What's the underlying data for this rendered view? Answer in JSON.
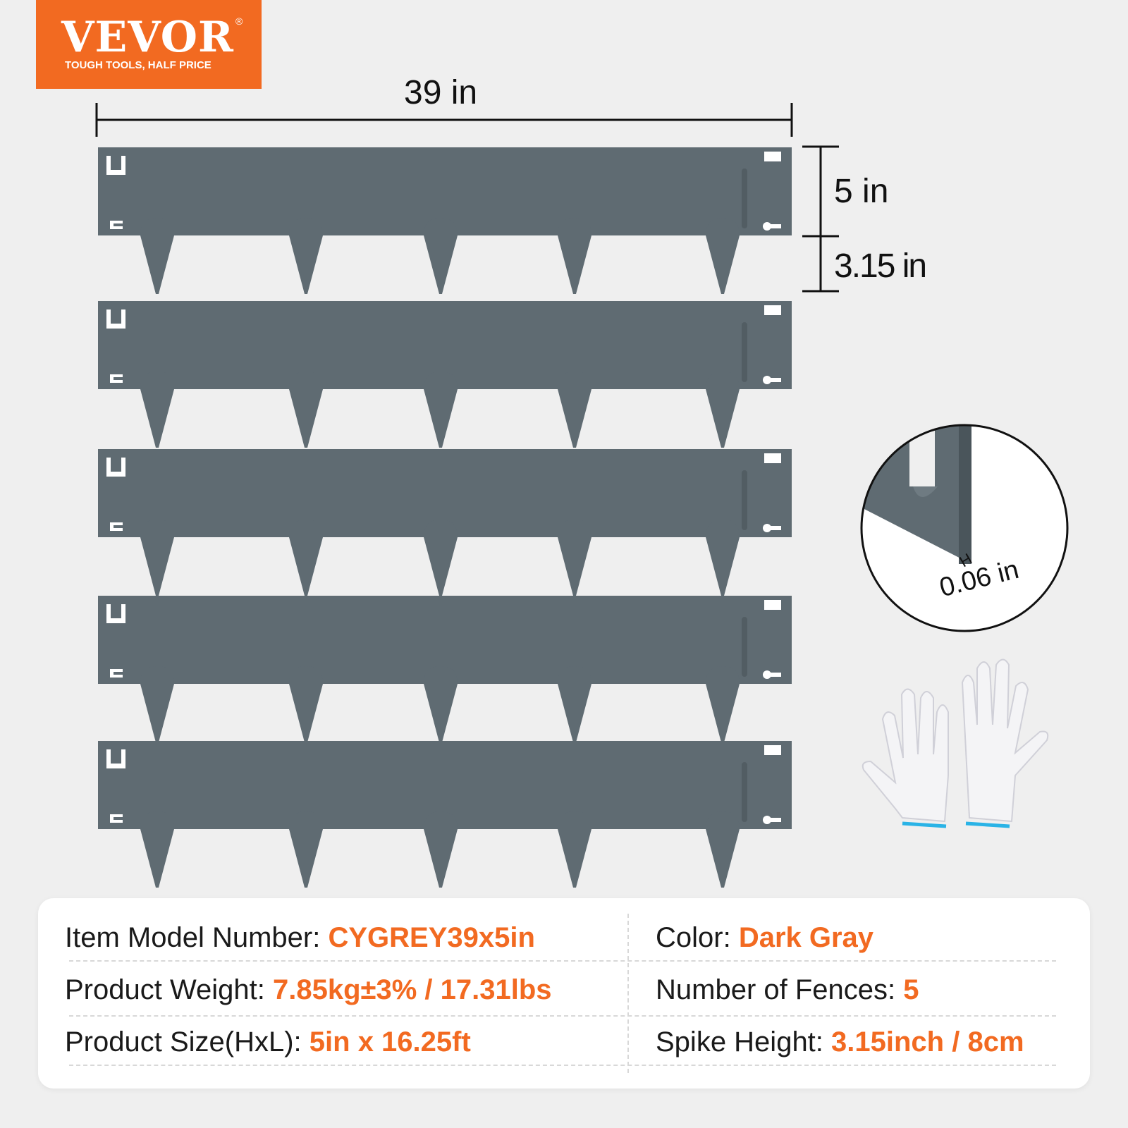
{
  "logo": {
    "brand": "VEVOR",
    "registered": "®",
    "tagline": "TOUGH TOOLS, HALF PRICE"
  },
  "dimensions": {
    "length": "39 in",
    "height": "5 in",
    "spike": "3.15 in",
    "thickness": "0.06 in",
    "thickness_marker": "H"
  },
  "fence_count": 5,
  "colors": {
    "accent": "#f26a21",
    "panel": "#5f6b72",
    "background": "#efefef"
  },
  "specs": [
    {
      "label": "Item Model Number: ",
      "value": "CYGREY39x5in"
    },
    {
      "label": "Color: ",
      "value": "Dark Gray"
    },
    {
      "label": "Product Weight: ",
      "value": "7.85kg±3% / 17.31lbs"
    },
    {
      "label": "Number of Fences: ",
      "value": "5"
    },
    {
      "label": "Product Size(HxL): ",
      "value": "5in x 16.25ft"
    },
    {
      "label": "Spike Height: ",
      "value": "3.15inch / 8cm"
    }
  ]
}
